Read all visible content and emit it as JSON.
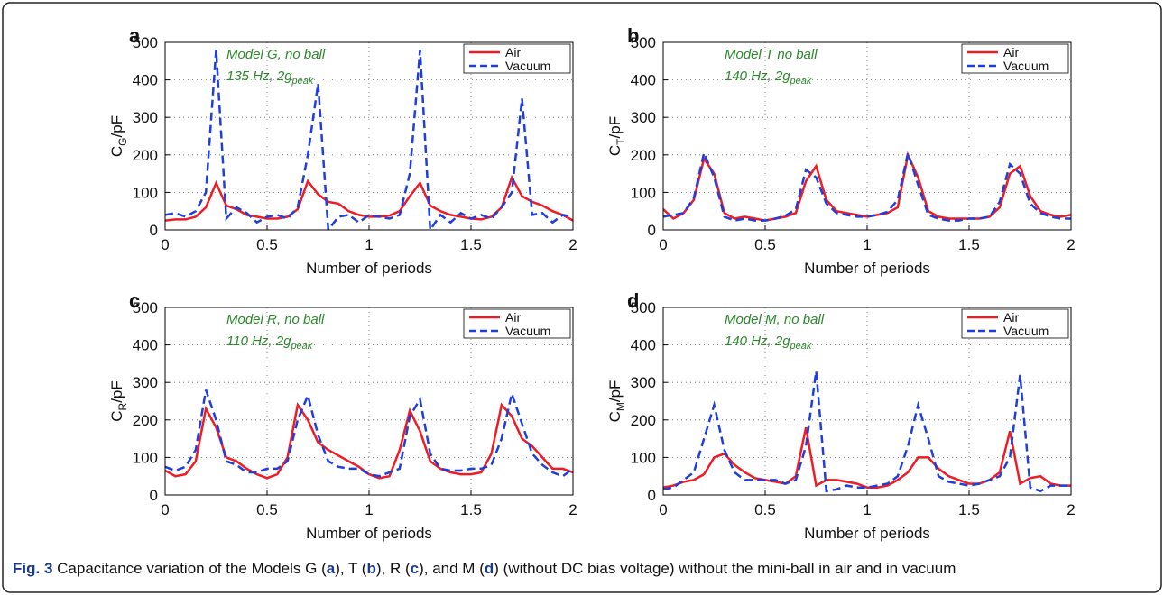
{
  "chart_data": [
    {
      "type": "line",
      "panel": "a",
      "xlabel": "Number of periods",
      "ylabel": {
        "base": "C",
        "sub": "G",
        "rest": "/pF"
      },
      "annotation": {
        "line1": "Model G, no ball",
        "line2": "135 Hz, 2g",
        "sub": "peak"
      },
      "x": [
        0,
        0.05,
        0.1,
        0.15,
        0.2,
        0.25,
        0.3,
        0.35,
        0.4,
        0.45,
        0.5,
        0.55,
        0.6,
        0.65,
        0.7,
        0.75,
        0.8,
        0.85,
        0.9,
        0.95,
        1,
        1.05,
        1.1,
        1.15,
        1.2,
        1.25,
        1.3,
        1.35,
        1.4,
        1.45,
        1.5,
        1.55,
        1.6,
        1.65,
        1.7,
        1.75,
        1.8,
        1.85,
        1.9,
        1.95,
        2
      ],
      "series": [
        {
          "name": "Air",
          "color": "#ee1c24",
          "dash": false,
          "values": [
            25,
            28,
            28,
            35,
            60,
            125,
            65,
            55,
            40,
            35,
            30,
            30,
            35,
            55,
            130,
            95,
            75,
            70,
            50,
            40,
            35,
            35,
            38,
            50,
            90,
            125,
            65,
            50,
            40,
            35,
            30,
            28,
            35,
            60,
            140,
            90,
            75,
            65,
            50,
            40,
            25
          ]
        },
        {
          "name": "Vacuum",
          "color": "#1f3fdb",
          "dash": true,
          "values": [
            40,
            45,
            35,
            50,
            100,
            480,
            30,
            60,
            45,
            20,
            35,
            40,
            30,
            60,
            200,
            390,
            0,
            35,
            40,
            20,
            40,
            35,
            30,
            40,
            150,
            480,
            0,
            40,
            20,
            45,
            30,
            40,
            30,
            60,
            100,
            350,
            40,
            45,
            20,
            40,
            35
          ]
        }
      ],
      "xlim": [
        0,
        2
      ],
      "ylim": [
        0,
        500
      ],
      "xticks": [
        0,
        0.5,
        1,
        1.5,
        2
      ],
      "yticks": [
        0,
        100,
        200,
        300,
        400,
        500
      ],
      "grid": true,
      "legend": "upper right"
    },
    {
      "type": "line",
      "panel": "b",
      "xlabel": "Number of periods",
      "ylabel": {
        "base": "C",
        "sub": "T",
        "rest": "/pF"
      },
      "annotation": {
        "line1": "Model T no ball",
        "line2": "140 Hz, 2g",
        "sub": "peak"
      },
      "x": [
        0,
        0.05,
        0.1,
        0.15,
        0.2,
        0.25,
        0.3,
        0.35,
        0.4,
        0.45,
        0.5,
        0.55,
        0.6,
        0.65,
        0.7,
        0.75,
        0.8,
        0.85,
        0.9,
        0.95,
        1,
        1.05,
        1.1,
        1.15,
        1.2,
        1.25,
        1.3,
        1.35,
        1.4,
        1.45,
        1.5,
        1.55,
        1.6,
        1.65,
        1.7,
        1.75,
        1.8,
        1.85,
        1.9,
        1.95,
        2
      ],
      "series": [
        {
          "name": "Air",
          "color": "#ee1c24",
          "dash": false,
          "values": [
            55,
            30,
            45,
            80,
            190,
            150,
            45,
            30,
            35,
            30,
            25,
            30,
            35,
            45,
            130,
            170,
            80,
            50,
            45,
            40,
            35,
            40,
            45,
            60,
            200,
            140,
            50,
            35,
            30,
            30,
            30,
            30,
            35,
            60,
            150,
            170,
            90,
            50,
            40,
            35,
            40
          ]
        },
        {
          "name": "Vacuum",
          "color": "#1f3fdb",
          "dash": true,
          "values": [
            35,
            40,
            45,
            85,
            205,
            140,
            35,
            25,
            30,
            25,
            25,
            30,
            38,
            55,
            160,
            140,
            70,
            45,
            40,
            35,
            35,
            40,
            48,
            80,
            205,
            120,
            40,
            30,
            25,
            25,
            30,
            30,
            35,
            75,
            175,
            150,
            70,
            45,
            35,
            30,
            30
          ]
        }
      ],
      "xlim": [
        0,
        2
      ],
      "ylim": [
        0,
        500
      ],
      "xticks": [
        0,
        0.5,
        1,
        1.5,
        2
      ],
      "yticks": [
        0,
        100,
        200,
        300,
        400,
        500
      ],
      "grid": true,
      "legend": "upper right"
    },
    {
      "type": "line",
      "panel": "c",
      "xlabel": "Number of periods",
      "ylabel": {
        "base": "C",
        "sub": "R",
        "rest": "/pF"
      },
      "annotation": {
        "line1": "Model R, no ball",
        "line2": "110 Hz, 2g",
        "sub": "peak"
      },
      "x": [
        0,
        0.05,
        0.1,
        0.15,
        0.2,
        0.25,
        0.3,
        0.35,
        0.4,
        0.45,
        0.5,
        0.55,
        0.6,
        0.65,
        0.7,
        0.75,
        0.8,
        0.85,
        0.9,
        0.95,
        1,
        1.05,
        1.1,
        1.15,
        1.2,
        1.25,
        1.3,
        1.35,
        1.4,
        1.45,
        1.5,
        1.55,
        1.6,
        1.65,
        1.7,
        1.75,
        1.8,
        1.85,
        1.9,
        1.95,
        2
      ],
      "series": [
        {
          "name": "Air",
          "color": "#ee1c24",
          "dash": false,
          "values": [
            65,
            50,
            55,
            90,
            230,
            180,
            100,
            90,
            70,
            55,
            45,
            55,
            100,
            240,
            200,
            140,
            120,
            105,
            90,
            75,
            55,
            45,
            50,
            120,
            225,
            170,
            90,
            70,
            60,
            55,
            55,
            60,
            110,
            240,
            210,
            150,
            130,
            100,
            70,
            70,
            60
          ]
        },
        {
          "name": "Vacuum",
          "color": "#1f3fdb",
          "dash": true,
          "values": [
            75,
            65,
            75,
            120,
            280,
            200,
            90,
            80,
            60,
            60,
            70,
            70,
            90,
            200,
            265,
            160,
            90,
            75,
            70,
            70,
            55,
            50,
            60,
            70,
            210,
            255,
            110,
            70,
            65,
            65,
            70,
            70,
            80,
            150,
            270,
            190,
            110,
            80,
            60,
            50,
            70
          ]
        }
      ],
      "xlim": [
        0,
        2
      ],
      "ylim": [
        0,
        500
      ],
      "xticks": [
        0,
        0.5,
        1,
        1.5,
        2
      ],
      "yticks": [
        0,
        100,
        200,
        300,
        400,
        500
      ],
      "grid": true,
      "legend": "upper right"
    },
    {
      "type": "line",
      "panel": "d",
      "xlabel": "Number of periods",
      "ylabel": {
        "base": "C",
        "sub": "M",
        "rest": "/pF"
      },
      "annotation": {
        "line1": "Model M, no ball",
        "line2": "140 Hz, 2g",
        "sub": "peak"
      },
      "x": [
        0,
        0.05,
        0.1,
        0.15,
        0.2,
        0.25,
        0.3,
        0.35,
        0.4,
        0.45,
        0.5,
        0.55,
        0.6,
        0.65,
        0.7,
        0.75,
        0.8,
        0.85,
        0.9,
        0.95,
        1,
        1.05,
        1.1,
        1.15,
        1.2,
        1.25,
        1.3,
        1.35,
        1.4,
        1.45,
        1.5,
        1.55,
        1.6,
        1.65,
        1.7,
        1.75,
        1.8,
        1.85,
        1.9,
        1.95,
        2
      ],
      "series": [
        {
          "name": "Air",
          "color": "#ee1c24",
          "dash": false,
          "values": [
            20,
            25,
            35,
            40,
            55,
            100,
            110,
            80,
            60,
            45,
            40,
            35,
            30,
            50,
            180,
            25,
            40,
            40,
            35,
            30,
            20,
            20,
            25,
            40,
            60,
            100,
            100,
            70,
            50,
            40,
            30,
            30,
            40,
            60,
            170,
            30,
            45,
            50,
            30,
            25,
            25
          ]
        },
        {
          "name": "Vacuum",
          "color": "#1f3fdb",
          "dash": true,
          "values": [
            15,
            20,
            40,
            60,
            150,
            240,
            120,
            60,
            40,
            40,
            40,
            40,
            30,
            40,
            130,
            330,
            10,
            15,
            25,
            20,
            20,
            25,
            30,
            50,
            130,
            240,
            150,
            50,
            35,
            30,
            25,
            30,
            40,
            50,
            100,
            320,
            20,
            10,
            25,
            25,
            25
          ]
        }
      ],
      "xlim": [
        0,
        2
      ],
      "ylim": [
        0,
        500
      ],
      "xticks": [
        0,
        0.5,
        1,
        1.5,
        2
      ],
      "yticks": [
        0,
        100,
        200,
        300,
        400,
        500
      ],
      "grid": true,
      "legend": "upper right"
    }
  ],
  "caption": [
    {
      "text": "Fig. 3",
      "bold": true
    },
    {
      "text": " Capacitance variation of the Models G (",
      "bold": false
    },
    {
      "text": "a",
      "bold": true
    },
    {
      "text": "), T (",
      "bold": false
    },
    {
      "text": "b",
      "bold": true
    },
    {
      "text": "), R (",
      "bold": false
    },
    {
      "text": "c",
      "bold": true
    },
    {
      "text": "), and M (",
      "bold": false
    },
    {
      "text": "d",
      "bold": true
    },
    {
      "text": ") (without DC bias voltage) without the mini-ball in air and in vacuum",
      "bold": false
    }
  ]
}
